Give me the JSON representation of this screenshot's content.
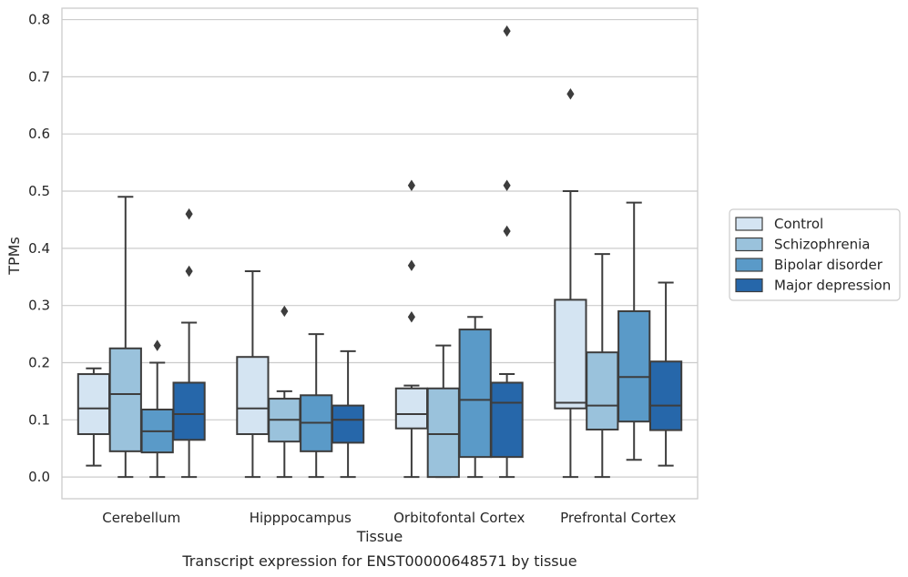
{
  "chart_data": {
    "type": "box",
    "title": "",
    "caption": "Transcript expression for ENST00000648571 by tissue",
    "xlabel": "Tissue",
    "ylabel": "TPMs",
    "ylim": [
      -0.038,
      0.82
    ],
    "yticks": [
      0.0,
      0.1,
      0.2,
      0.3,
      0.4,
      0.5,
      0.6,
      0.7,
      0.8
    ],
    "ytick_labels": [
      "0.0",
      "0.1",
      "0.2",
      "0.3",
      "0.4",
      "0.5",
      "0.6",
      "0.7",
      "0.8"
    ],
    "grid": true,
    "legend_placement": "right",
    "categories": [
      "Cerebellum",
      "Hipppocampus",
      "Orbitofontal Cortex",
      "Prefrontal Cortex"
    ],
    "series": [
      {
        "name": "Control",
        "color": "#d4e4f2",
        "boxes": [
          {
            "whisker_low": 0.02,
            "q1": 0.075,
            "median": 0.12,
            "q3": 0.18,
            "whisker_high": 0.19,
            "outliers": []
          },
          {
            "whisker_low": 0.0,
            "q1": 0.075,
            "median": 0.12,
            "q3": 0.21,
            "whisker_high": 0.36,
            "outliers": []
          },
          {
            "whisker_low": 0.0,
            "q1": 0.085,
            "median": 0.11,
            "q3": 0.155,
            "whisker_high": 0.16,
            "outliers": [
              0.28,
              0.37,
              0.51
            ]
          },
          {
            "whisker_low": 0.0,
            "q1": 0.12,
            "median": 0.13,
            "q3": 0.31,
            "whisker_high": 0.5,
            "outliers": [
              0.67
            ]
          }
        ]
      },
      {
        "name": "Schizophrenia",
        "color": "#9ac2dc",
        "boxes": [
          {
            "whisker_low": 0.0,
            "q1": 0.045,
            "median": 0.145,
            "q3": 0.225,
            "whisker_high": 0.49,
            "outliers": []
          },
          {
            "whisker_low": 0.0,
            "q1": 0.062,
            "median": 0.1,
            "q3": 0.137,
            "whisker_high": 0.15,
            "outliers": [
              0.29
            ]
          },
          {
            "whisker_low": 0.0,
            "q1": 0.0,
            "median": 0.075,
            "q3": 0.155,
            "whisker_high": 0.23,
            "outliers": []
          },
          {
            "whisker_low": 0.0,
            "q1": 0.083,
            "median": 0.125,
            "q3": 0.218,
            "whisker_high": 0.39,
            "outliers": []
          }
        ]
      },
      {
        "name": "Bipolar disorder",
        "color": "#5a9ac8",
        "boxes": [
          {
            "whisker_low": 0.0,
            "q1": 0.043,
            "median": 0.08,
            "q3": 0.118,
            "whisker_high": 0.2,
            "outliers": [
              0.23
            ]
          },
          {
            "whisker_low": 0.0,
            "q1": 0.045,
            "median": 0.095,
            "q3": 0.143,
            "whisker_high": 0.25,
            "outliers": []
          },
          {
            "whisker_low": 0.0,
            "q1": 0.035,
            "median": 0.135,
            "q3": 0.258,
            "whisker_high": 0.28,
            "outliers": []
          },
          {
            "whisker_low": 0.03,
            "q1": 0.097,
            "median": 0.175,
            "q3": 0.29,
            "whisker_high": 0.48,
            "outliers": []
          }
        ]
      },
      {
        "name": "Major depression",
        "color": "#2667aa",
        "boxes": [
          {
            "whisker_low": 0.0,
            "q1": 0.065,
            "median": 0.11,
            "q3": 0.165,
            "whisker_high": 0.27,
            "outliers": [
              0.36,
              0.46
            ]
          },
          {
            "whisker_low": 0.0,
            "q1": 0.06,
            "median": 0.1,
            "q3": 0.125,
            "whisker_high": 0.22,
            "outliers": []
          },
          {
            "whisker_low": 0.0,
            "q1": 0.035,
            "median": 0.13,
            "q3": 0.165,
            "whisker_high": 0.18,
            "outliers": [
              0.43,
              0.51,
              0.78
            ]
          },
          {
            "whisker_low": 0.02,
            "q1": 0.082,
            "median": 0.125,
            "q3": 0.202,
            "whisker_high": 0.34,
            "outliers": []
          }
        ]
      }
    ]
  }
}
